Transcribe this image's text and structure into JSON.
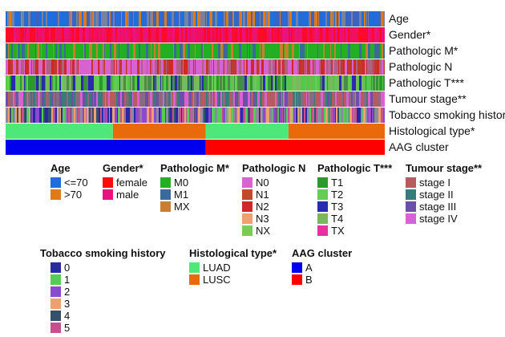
{
  "chart_data": {
    "type": "heatmap",
    "title": "",
    "rows": [
      {
        "label": "Age",
        "palette": [
          "#1f6ee0",
          "#1f6ee0",
          "#3a64c0",
          "#e07a18",
          "#7a80a0"
        ]
      },
      {
        "label": "Gender*",
        "palette": [
          "#ff0a2a",
          "#e8137f",
          "#f01060"
        ]
      },
      {
        "label": "Pathologic M*",
        "palette": [
          "#22b022",
          "#22b022",
          "#22b022",
          "#3a6a9a",
          "#c88030"
        ]
      },
      {
        "label": "Pathologic N",
        "palette": [
          "#d862d0",
          "#d862d0",
          "#c03a2a",
          "#d02828",
          "#b06080"
        ]
      },
      {
        "label": "Pathologic T***",
        "palette": [
          "#55c84a",
          "#2a9a2a",
          "#66cc55",
          "#2a2ab0",
          "#7ab860",
          "#4a8a4a"
        ]
      },
      {
        "label": "Tumour stage**",
        "palette": [
          "#b85a60",
          "#3a7a7a",
          "#6a50a8",
          "#d862d0",
          "#8a6a80"
        ]
      },
      {
        "label": "Tobacco smoking history",
        "palette": [
          "#2a2aa0",
          "#55cc55",
          "#8a4ad0",
          "#f0a070",
          "#34506a",
          "#c85090",
          "#8a8aa0"
        ]
      },
      {
        "label": "Histological type*",
        "segments": [
          [
            "LUAD",
            0,
            0.283
          ],
          [
            "LUSC",
            0.283,
            0.528
          ],
          [
            "LUAD",
            0.528,
            0.746
          ],
          [
            "LUSC",
            0.746,
            1
          ]
        ]
      },
      {
        "label": "AAG cluster",
        "segments": [
          [
            "A",
            0,
            0.528
          ],
          [
            "B",
            0.528,
            1
          ]
        ]
      }
    ],
    "legends": [
      {
        "title": "Age",
        "items": [
          {
            "label": "<=70",
            "color": "#1f6ee0"
          },
          {
            "label": ">70",
            "color": "#e07a18"
          }
        ]
      },
      {
        "title": "Gender*",
        "items": [
          {
            "label": "female",
            "color": "#ff0a0a"
          },
          {
            "label": "male",
            "color": "#e8137f"
          }
        ]
      },
      {
        "title": "Pathologic M*",
        "items": [
          {
            "label": "M0",
            "color": "#22b022"
          },
          {
            "label": "M1",
            "color": "#3a6a9a"
          },
          {
            "label": "MX",
            "color": "#c88030"
          }
        ]
      },
      {
        "title": "Pathologic N",
        "items": [
          {
            "label": "N0",
            "color": "#d862d0"
          },
          {
            "label": "N1",
            "color": "#c04a2a"
          },
          {
            "label": "N2",
            "color": "#d02828"
          },
          {
            "label": "N3",
            "color": "#f0a070"
          },
          {
            "label": "NX",
            "color": "#7acc55"
          }
        ]
      },
      {
        "title": "Pathologic T***",
        "items": [
          {
            "label": "T1",
            "color": "#2a9a2a"
          },
          {
            "label": "T2",
            "color": "#66cc55"
          },
          {
            "label": "T3",
            "color": "#2a2ab0"
          },
          {
            "label": "T4",
            "color": "#7ab860"
          },
          {
            "label": "TX",
            "color": "#e830a0"
          }
        ]
      },
      {
        "title": "Tumour stage**",
        "items": [
          {
            "label": "stage I",
            "color": "#b85a60"
          },
          {
            "label": "stage II",
            "color": "#3a7a7a"
          },
          {
            "label": "stage III",
            "color": "#6a50a8"
          },
          {
            "label": "stage IV",
            "color": "#d862d0"
          }
        ]
      },
      {
        "title": "Tobacco smoking history",
        "items": [
          {
            "label": "0",
            "color": "#2a2aa0"
          },
          {
            "label": "1",
            "color": "#55cc55"
          },
          {
            "label": "2",
            "color": "#8a4ad0"
          },
          {
            "label": "3",
            "color": "#f0a070"
          },
          {
            "label": "4",
            "color": "#34506a"
          },
          {
            "label": "5",
            "color": "#c85090"
          }
        ]
      },
      {
        "title": "Histological type*",
        "items": [
          {
            "label": "LUAD",
            "color": "#4ee87a"
          },
          {
            "label": "LUSC",
            "color": "#e86a0a"
          }
        ]
      },
      {
        "title": "AAG cluster",
        "items": [
          {
            "label": "A",
            "color": "#0000ee"
          },
          {
            "label": "B",
            "color": "#ff0000"
          }
        ]
      }
    ]
  }
}
